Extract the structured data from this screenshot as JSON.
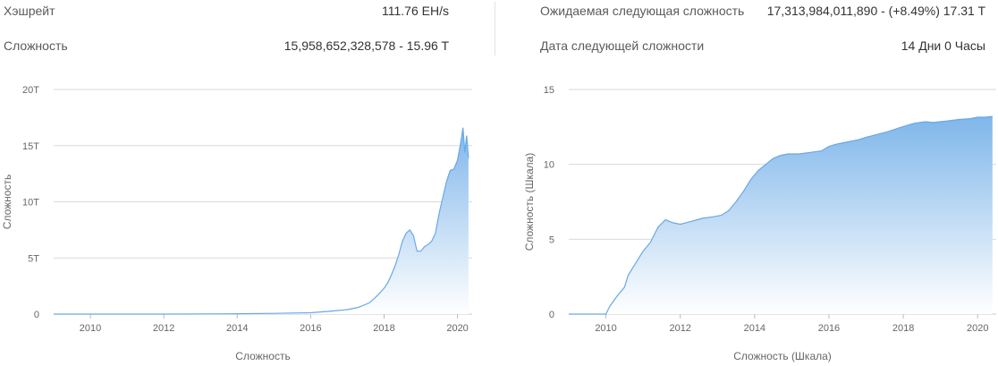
{
  "stats": {
    "hashrate_label": "Хэшрейт",
    "hashrate_value": "111.76 EH/s",
    "difficulty_label": "Сложность",
    "difficulty_value": "15,958,652,328,578 - 15.96 T",
    "expected_label": "Ожидаемая следующая сложность",
    "expected_value": "17,313,984,011,890 - (+8.49%) 17.31 T",
    "next_date_label": "Дата следующей сложности",
    "next_date_value": "14 Дни 0 Часы"
  },
  "colors": {
    "area_top": "#7fb6ea",
    "area_bottom": "#ffffff",
    "line": "#6aa8e6",
    "grid": "#d9d9d9"
  },
  "chart_data": [
    {
      "type": "area",
      "title": "",
      "xlabel": "Сложность",
      "ylabel": "Сложность",
      "xlim": [
        2009,
        2020.4
      ],
      "ylim": [
        0,
        20
      ],
      "x_ticks": [
        "2010",
        "2012",
        "2014",
        "2016",
        "2018",
        "2020"
      ],
      "y_ticks": [
        "0",
        "5T",
        "10T",
        "15T",
        "20T"
      ],
      "grid": true,
      "series": [
        {
          "x": [
            2009.0,
            2010.0,
            2011.0,
            2012.0,
            2013.0,
            2014.0,
            2015.0,
            2016.0,
            2016.5,
            2017.0,
            2017.3,
            2017.6,
            2017.8,
            2018.0,
            2018.1,
            2018.2,
            2018.3,
            2018.4,
            2018.5,
            2018.6,
            2018.7,
            2018.8,
            2018.9,
            2019.0,
            2019.1,
            2019.2,
            2019.3,
            2019.4,
            2019.5,
            2019.6,
            2019.7,
            2019.8,
            2019.9,
            2020.0,
            2020.1,
            2020.15,
            2020.2,
            2020.25,
            2020.3
          ],
          "values": [
            0.0,
            0.0,
            0.0,
            0.0,
            0.01,
            0.03,
            0.06,
            0.12,
            0.25,
            0.4,
            0.6,
            1.0,
            1.6,
            2.3,
            2.8,
            3.5,
            4.3,
            5.3,
            6.5,
            7.2,
            7.5,
            7.0,
            5.6,
            5.6,
            6.0,
            6.2,
            6.5,
            7.2,
            9.0,
            10.4,
            11.8,
            12.8,
            12.9,
            13.7,
            15.5,
            16.6,
            14.4,
            15.9,
            13.9
          ]
        }
      ]
    },
    {
      "type": "area",
      "title": "",
      "xlabel": "Сложность (Шкала)",
      "ylabel": "Сложность (Шкала)",
      "xlim": [
        2009,
        2020.5
      ],
      "ylim": [
        0,
        15
      ],
      "x_ticks": [
        "2010",
        "2012",
        "2014",
        "2016",
        "2018",
        "2020"
      ],
      "y_ticks": [
        "0",
        "5",
        "10",
        "15"
      ],
      "grid": true,
      "series": [
        {
          "x": [
            2009.0,
            2009.5,
            2010.0,
            2010.1,
            2010.3,
            2010.5,
            2010.6,
            2010.8,
            2011.0,
            2011.2,
            2011.4,
            2011.6,
            2011.8,
            2012.0,
            2012.3,
            2012.6,
            2012.9,
            2013.1,
            2013.3,
            2013.5,
            2013.7,
            2013.9,
            2014.1,
            2014.3,
            2014.5,
            2014.7,
            2014.9,
            2015.2,
            2015.5,
            2015.8,
            2016.0,
            2016.2,
            2016.5,
            2016.8,
            2017.0,
            2017.3,
            2017.6,
            2017.9,
            2018.1,
            2018.3,
            2018.6,
            2018.8,
            2019.0,
            2019.2,
            2019.5,
            2019.8,
            2020.0,
            2020.2,
            2020.4
          ],
          "values": [
            0.0,
            0.0,
            0.0,
            0.5,
            1.2,
            1.8,
            2.6,
            3.4,
            4.2,
            4.8,
            5.8,
            6.3,
            6.1,
            6.0,
            6.2,
            6.4,
            6.5,
            6.6,
            6.9,
            7.5,
            8.2,
            9.0,
            9.6,
            10.0,
            10.4,
            10.6,
            10.7,
            10.7,
            10.8,
            10.9,
            11.2,
            11.35,
            11.5,
            11.65,
            11.8,
            12.0,
            12.2,
            12.45,
            12.6,
            12.75,
            12.85,
            12.8,
            12.85,
            12.9,
            13.0,
            13.05,
            13.15,
            13.15,
            13.2
          ]
        }
      ]
    }
  ]
}
